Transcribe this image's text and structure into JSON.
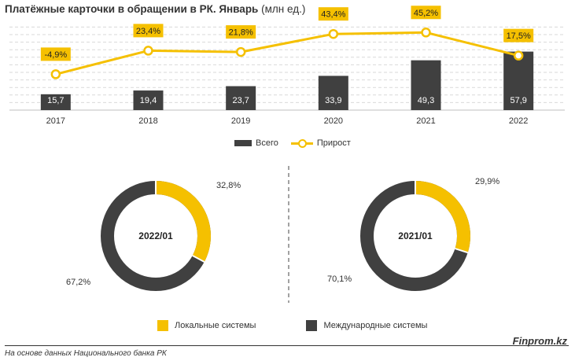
{
  "title_bold": "Платёжные карточки в обращении в РК. Январь",
  "title_rest": "(млн ед.)",
  "colors": {
    "bar": "#404040",
    "line": "#f5c000",
    "label_bg": "#f5c000",
    "grid": "#d9d9d9"
  },
  "chart_data": [
    {
      "type": "bar+line",
      "categories": [
        "2017",
        "2018",
        "2019",
        "2020",
        "2021",
        "2022"
      ],
      "series": [
        {
          "name": "Всего",
          "type": "bar",
          "values": [
            15.7,
            19.4,
            23.7,
            33.9,
            49.3,
            57.9
          ],
          "labels": [
            "15,7",
            "19,4",
            "23,7",
            "33,9",
            "49,3",
            "57,9"
          ]
        },
        {
          "name": "Прирост",
          "type": "line",
          "values": [
            -4.9,
            23.4,
            21.8,
            43.4,
            45.2,
            17.5
          ],
          "labels": [
            "-4,9%",
            "23,4%",
            "21,8%",
            "43,4%",
            "45,2%",
            "17,5%"
          ]
        }
      ],
      "legend": [
        "Всего",
        "Прирост"
      ]
    },
    {
      "type": "pie",
      "center_label": "2022/01",
      "slices": [
        {
          "name": "Локальные системы",
          "value": 32.8,
          "label": "32,8%"
        },
        {
          "name": "Международные системы",
          "value": 67.2,
          "label": "67,2%"
        }
      ]
    },
    {
      "type": "pie",
      "center_label": "2021/01",
      "slices": [
        {
          "name": "Локальные системы",
          "value": 29.9,
          "label": "29,9%"
        },
        {
          "name": "Международные системы",
          "value": 70.1,
          "label": "70,1%"
        }
      ]
    }
  ],
  "pie_legend": [
    "Локальные системы",
    "Международные системы"
  ],
  "source": "На основе данных Национального банка РК",
  "brand": "Finprom.kz"
}
